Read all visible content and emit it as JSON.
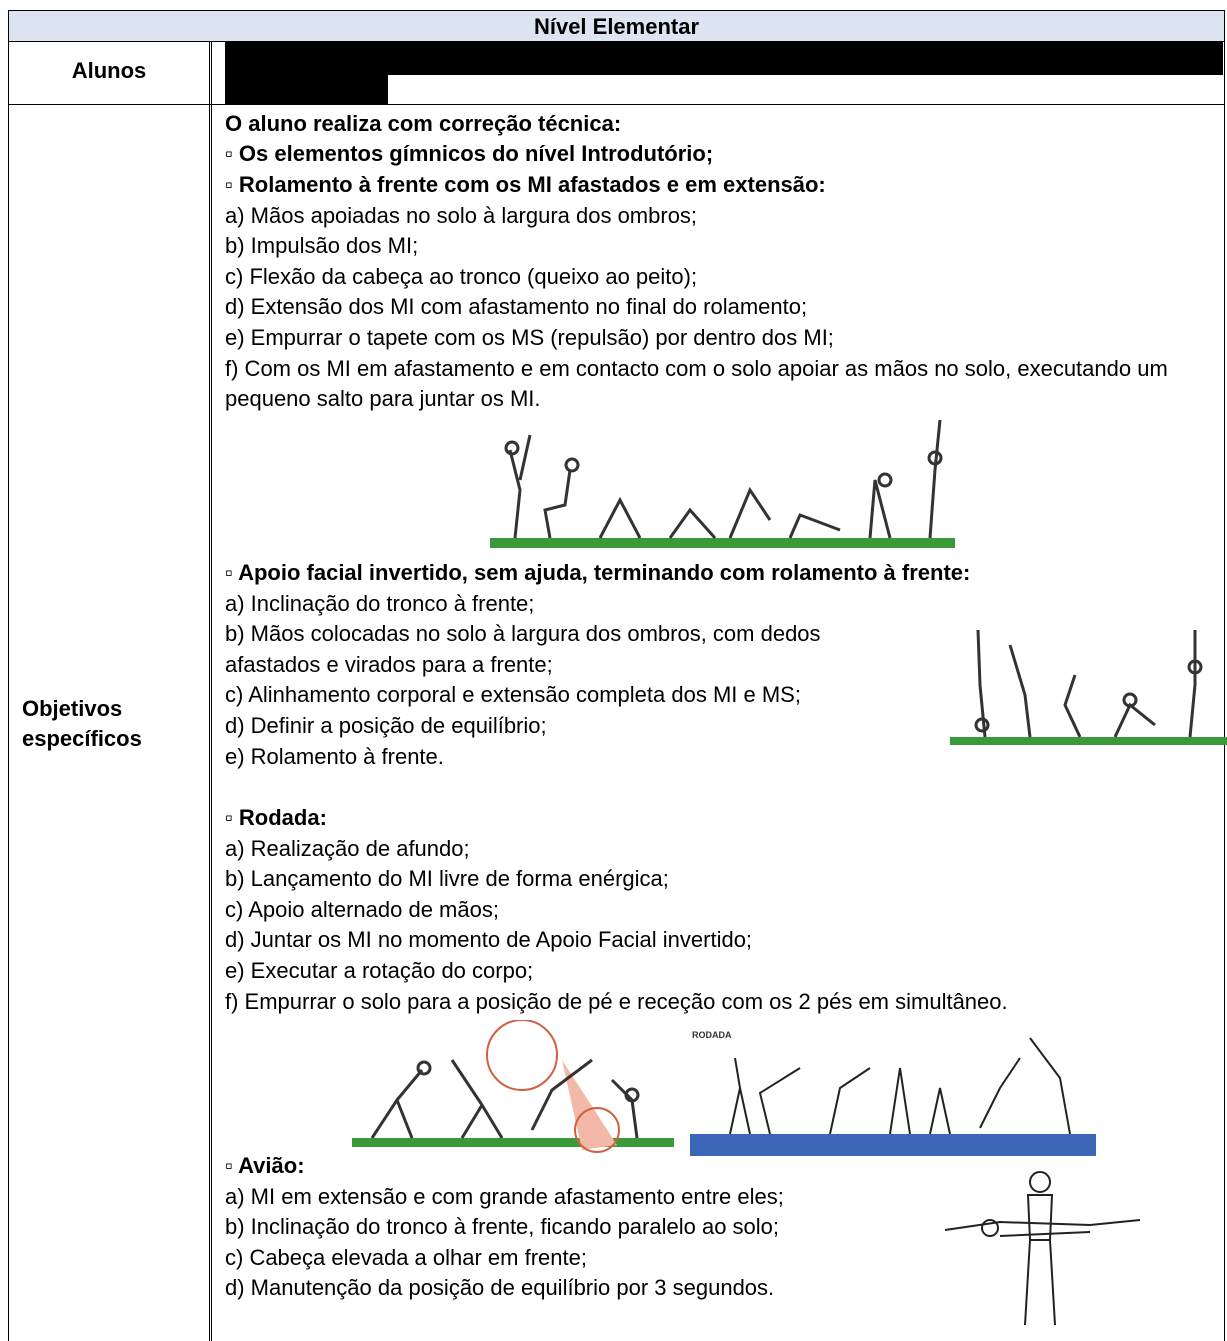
{
  "header": {
    "title": "Nível Elementar"
  },
  "students": {
    "label": "Alunos"
  },
  "objectives": {
    "label": "Objetivos específicos",
    "intro": "O aluno realiza com correção técnica:",
    "sections": [
      {
        "heading": "▫ Os elementos gímnicos do nível Introdutório;",
        "items": []
      },
      {
        "heading": "▫ Rolamento à frente com os MI afastados e em extensão:",
        "items": [
          "a) Mãos apoiadas no solo à largura dos ombros;",
          "b) Impulsão dos MI;",
          "c) Flexão da cabeça ao tronco (queixo ao peito);",
          "d) Extensão dos MI com afastamento no final do rolamento;",
          "e) Empurrar o tapete com os MS (repulsão) por dentro dos MI;",
          "f) Com os MI em afastamento e em contacto com o solo apoiar as mãos no solo, executando um pequeno salto para juntar os MI."
        ]
      },
      {
        "heading": "▫ Apoio facial invertido, sem ajuda, terminando com rolamento à frente:",
        "items": [
          "a) Inclinação do tronco à frente;",
          "b) Mãos colocadas no solo à largura dos ombros, com dedos afastados e virados para a frente;",
          "c) Alinhamento corporal e extensão completa dos MI e MS;",
          "d) Definir a posição de equilíbrio;",
          "e) Rolamento à frente."
        ]
      },
      {
        "heading": "▫ Rodada:",
        "items": [
          "a) Realização de afundo;",
          "b) Lançamento do MI livre de forma enérgica;",
          "c) Apoio alternado de mãos;",
          "d) Juntar os MI no momento de Apoio Facial invertido;",
          "e) Executar a rotação do corpo;",
          "f) Empurrar o solo para a posição de pé e receção com os 2 pés em simultâneo."
        ]
      },
      {
        "heading": "▫ Avião:",
        "items": [
          "a) MI em extensão e com grande afastamento entre eles;",
          "b) Inclinação do tronco à frente, ficando paralelo ao solo;",
          "c) Cabeça elevada a olhar em frente;",
          "d) Manutenção da posição de equilíbrio por 3 segundos."
        ]
      }
    ],
    "image_label": "RODADA"
  }
}
